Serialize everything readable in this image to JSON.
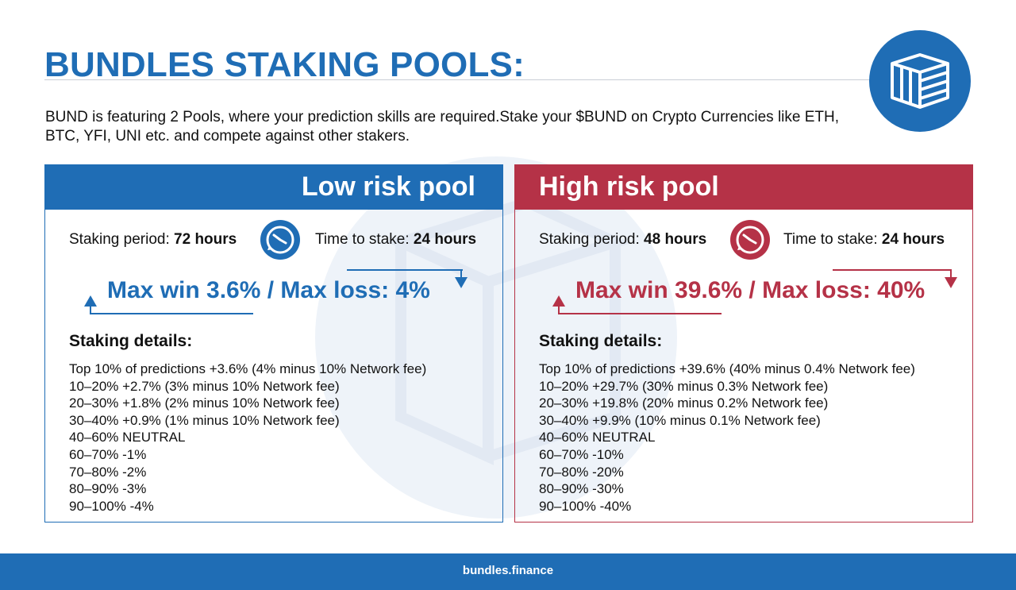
{
  "header": {
    "title": "BUNDLES STAKING POOLS:",
    "intro": "BUND is featuring 2 Pools, where your prediction skills are required.Stake your $BUND on Crypto Currencies like ETH, BTC, YFI, UNI etc. and compete against other stakers.",
    "logo_icon": "cube-stack-icon"
  },
  "pools": [
    {
      "title": "Low risk pool",
      "staking_period_label": "Staking period:",
      "staking_period_value": "72 hours",
      "time_to_stake_label": "Time to stake:",
      "time_to_stake_value": "24 hours",
      "clock_icon": "clock-icon",
      "max_line": "Max win 3.6% / Max loss: 4%",
      "details_title": "Staking details:",
      "details": [
        "Top 10% of predictions +3.6% (4% minus 10% Network fee)",
        "10–20% +2.7% (3% minus 10% Network fee)",
        "20–30% +1.8% (2% minus 10% Network fee)",
        "30–40% +0.9% (1% minus 10% Network fee)",
        "40–60% NEUTRAL",
        "60–70% -1%",
        "70–80% -2%",
        "80–90% -3%",
        "90–100% -4%"
      ],
      "color": "#1f6db5"
    },
    {
      "title": "High risk pool",
      "staking_period_label": "Staking period:",
      "staking_period_value": "48 hours",
      "time_to_stake_label": "Time to stake:",
      "time_to_stake_value": "24 hours",
      "clock_icon": "clock-icon",
      "max_line": "Max win 39.6% / Max loss: 40%",
      "details_title": "Staking details:",
      "details": [
        "Top 10% of predictions +39.6% (40% minus 0.4% Network fee)",
        "10–20% +29.7% (30% minus 0.3% Network fee)",
        "20–30% +19.8% (20% minus 0.2% Network fee)",
        "30–40% +9.9% (10% minus 0.1% Network fee)",
        "40–60% NEUTRAL",
        "60–70% -10%",
        "70–80% -20%",
        "80–90% -30%",
        "90–100% -40%"
      ],
      "color": "#b53247"
    }
  ],
  "footer": {
    "link": "bundles.finance"
  },
  "colors": {
    "brand_blue": "#1f6db5",
    "brand_red": "#b53247",
    "watermark": "#eef3f9"
  }
}
